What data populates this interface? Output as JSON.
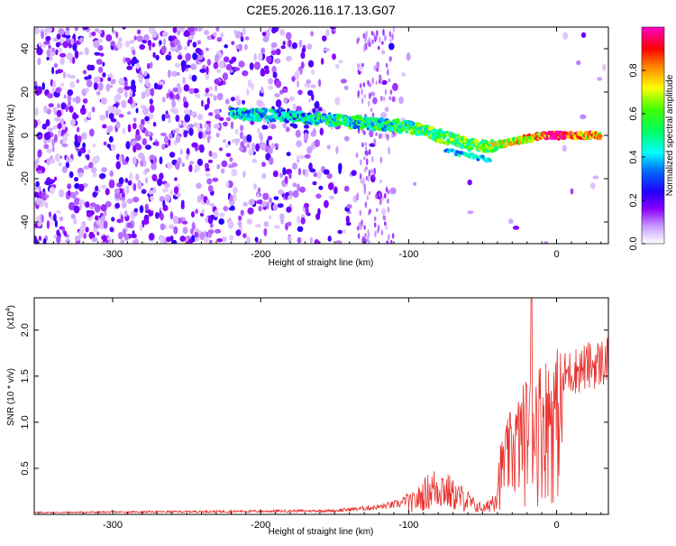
{
  "title": "C2E5.2026.116.17.13.G07",
  "chart_data": [
    {
      "type": "heatmap",
      "title": "C2E5.2026.116.17.13.G07",
      "xlabel": "Height of straight line (km)",
      "ylabel": "Frequency (Hz)",
      "xlim": [
        -353,
        35
      ],
      "ylim": [
        -50,
        50
      ],
      "x_ticks": [
        -300,
        -200,
        -100,
        0
      ],
      "y_ticks": [
        -40,
        -20,
        0,
        20,
        40
      ],
      "x_tick_labels": [
        "-300",
        "-200",
        "-100",
        "0"
      ],
      "y_tick_labels": [
        "-40",
        "-20",
        "0",
        "20",
        "40"
      ],
      "colorbar": {
        "label": "Normalized spectral amplitude",
        "range": [
          0,
          1
        ],
        "ticks": [
          0.0,
          0.2,
          0.4,
          0.6,
          0.8
        ],
        "tick_labels": [
          "0.0",
          "0.2",
          "0.4",
          "0.6",
          "0.8"
        ],
        "colors": [
          "#ffffff",
          "#8a00ff",
          "#0000ff",
          "#00ffff",
          "#00ff00",
          "#ffff00",
          "#ff0000",
          "#ff00ff"
        ]
      },
      "signal_track": {
        "description_points": [
          [
            -220,
            10
          ],
          [
            -180,
            9
          ],
          [
            -150,
            7
          ],
          [
            -120,
            5
          ],
          [
            -100,
            4
          ],
          [
            -80,
            0
          ],
          [
            -60,
            -4
          ],
          [
            -45,
            -5
          ],
          [
            -30,
            -3
          ],
          [
            -10,
            0
          ],
          [
            0,
            0
          ],
          [
            30,
            0
          ]
        ],
        "amplitude": [
          0.45,
          0.4,
          0.5,
          0.5,
          0.55,
          0.6,
          0.6,
          0.65,
          0.7,
          0.85,
          0.9,
          0.8
        ]
      }
    },
    {
      "type": "line",
      "xlabel": "Height of straight line (km)",
      "ylabel": "SNR (10 * v/v)",
      "y_multiplier_label": "(x10",
      "y_multiplier_exp": "4",
      "y_multiplier_close": ")",
      "xlim": [
        -353,
        35
      ],
      "ylim": [
        0,
        2.35
      ],
      "x_ticks": [
        -300,
        -200,
        -100,
        0
      ],
      "y_ticks": [
        0.5,
        1.0,
        1.5,
        2.0
      ],
      "x_tick_labels": [
        "-300",
        "-200",
        "-100",
        "0"
      ],
      "y_tick_labels": [
        "0.5",
        "1.0",
        "1.5",
        "2.0"
      ],
      "line_color": "#e8302c",
      "envelope": {
        "x": [
          -353,
          -250,
          -150,
          -120,
          -105,
          -95,
          -85,
          -78,
          -70,
          -62,
          -55,
          -48,
          -42,
          -38,
          -32,
          -25,
          -20,
          -15,
          -10,
          -5,
          0,
          10,
          20,
          35
        ],
        "y": [
          0.02,
          0.03,
          0.04,
          0.08,
          0.12,
          0.25,
          0.45,
          0.5,
          0.35,
          0.28,
          0.15,
          0.1,
          0.3,
          0.7,
          1.0,
          1.2,
          1.4,
          1.5,
          1.55,
          1.6,
          1.65,
          1.72,
          1.78,
          1.85
        ]
      }
    }
  ]
}
